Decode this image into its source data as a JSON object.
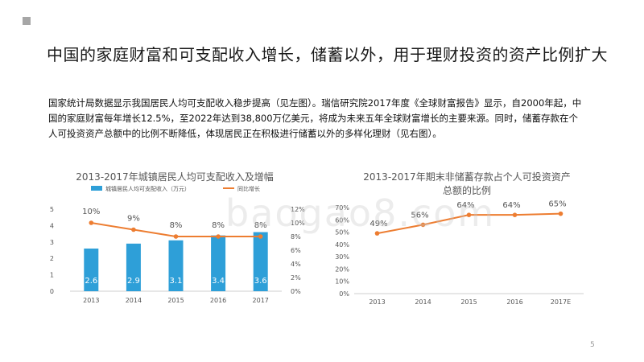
{
  "slide": {
    "title": "中国的家庭财富和可支配收入增长，储蓄以外，用于理财投资的资产比例扩大",
    "body": "国家统计局数据显示我国居民人均可支配收入稳步提高（见左图）。瑞信研究院2017年度《全球财富报告》显示，自2000年起，中国的家庭财富每年增长12.5%，至2022年达到38,800万亿美元，将成为未来五年全球财富增长的主要来源。同时，储蓄存款在个人可投资资产总额中的比例不断降低，体现居民正在积极进行储蓄以外的多样化理财（见右图）。",
    "page_number": "5",
    "watermark": "baogao8.com"
  },
  "colors": {
    "bar": "#2e9fd8",
    "line": "#ed7d31",
    "grid": "#e0e0e0"
  },
  "chart_data": [
    {
      "type": "bar",
      "title": "2013-2017年城镇居民人均可支配收入及增幅",
      "categories": [
        "2013",
        "2014",
        "2015",
        "2016",
        "2017"
      ],
      "series": [
        {
          "name": "城镇居民人均可支配收入（万元）",
          "values": [
            2.6,
            2.9,
            3.1,
            3.4,
            3.6
          ],
          "value_labels": [
            "2.6",
            "2.9",
            "3.1",
            "3.4",
            "3.6"
          ]
        },
        {
          "name": "同比增长",
          "type": "line",
          "values": [
            10,
            9,
            8,
            8,
            8
          ],
          "value_labels": [
            "10%",
            "9%",
            "8%",
            "8%",
            "8%"
          ]
        }
      ],
      "ylim": [
        0,
        5
      ],
      "yticks": [
        "0",
        "1",
        "2",
        "3",
        "4",
        "5"
      ],
      "y2lim": [
        0,
        12
      ],
      "y2ticks": [
        "0%",
        "2%",
        "4%",
        "6%",
        "8%",
        "10%",
        "12%"
      ],
      "legend_position": "top",
      "grid": false
    },
    {
      "type": "line",
      "title": "2013-2017年期末非储蓄存款占个人可投资资产总额的比例",
      "categories": [
        "2013",
        "2014",
        "2015",
        "2016",
        "2017E"
      ],
      "values": [
        49,
        56,
        64,
        64,
        65
      ],
      "value_labels": [
        "49%",
        "56%",
        "64%",
        "64%",
        "65%"
      ],
      "ylim": [
        0,
        70
      ],
      "yticks": [
        "0%",
        "10%",
        "20%",
        "30%",
        "40%",
        "50%",
        "60%",
        "70%"
      ],
      "grid": false
    }
  ]
}
